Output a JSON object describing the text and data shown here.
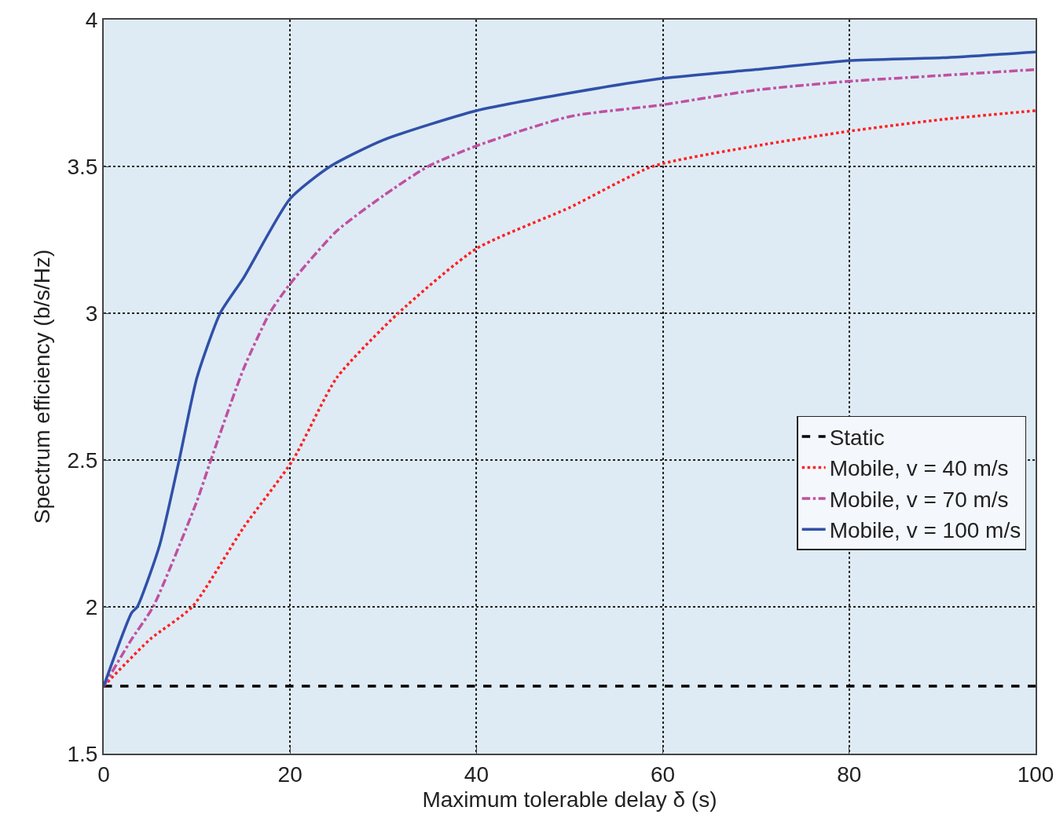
{
  "chart_data": {
    "type": "line",
    "xlabel": "Maximum tolerable delay δ (s)",
    "ylabel": "Spectrum efficiency (b/s/Hz)",
    "xlim": [
      0,
      100
    ],
    "ylim": [
      1.5,
      4
    ],
    "xticks": [
      0,
      20,
      40,
      60,
      80,
      100
    ],
    "yticks": [
      1.5,
      2,
      2.5,
      3,
      3.5,
      4
    ],
    "grid": true,
    "legend": "right",
    "marker": "none",
    "series": [
      {
        "name": "Static",
        "color": "#000000",
        "line_style": "dashed",
        "x": [
          0,
          100
        ],
        "values": [
          1.73,
          1.73
        ]
      },
      {
        "name": "Mobile, v = 40 m/s",
        "color": "#ff2020",
        "line_style": "dotted",
        "x": [
          0,
          5,
          9.5,
          15,
          20.3,
          25,
          31.6,
          40,
          50,
          58.9,
          70,
          80,
          90,
          100
        ],
        "values": [
          1.73,
          1.89,
          2.0,
          2.27,
          2.5,
          2.78,
          3.0,
          3.22,
          3.36,
          3.5,
          3.57,
          3.62,
          3.66,
          3.69
        ]
      },
      {
        "name": "Mobile, v = 70 m/s",
        "color": "#c050a0",
        "line_style": "dashdot",
        "x": [
          0,
          3,
          5.3,
          10,
          11.5,
          15,
          17.8,
          20,
          25,
          30,
          34.8,
          40,
          50,
          60,
          70,
          80,
          90,
          100
        ],
        "values": [
          1.73,
          1.89,
          2.0,
          2.36,
          2.5,
          2.81,
          3.0,
          3.1,
          3.28,
          3.4,
          3.5,
          3.57,
          3.67,
          3.71,
          3.76,
          3.79,
          3.81,
          3.83
        ]
      },
      {
        "name": "Mobile, v = 100 m/s",
        "color": "#3050a8",
        "line_style": "solid",
        "x": [
          0,
          3,
          3.6,
          6,
          8.1,
          10,
          12.5,
          15,
          20,
          24.3,
          30,
          40,
          50,
          60,
          70,
          80,
          90,
          100
        ],
        "values": [
          1.73,
          1.98,
          2.0,
          2.21,
          2.5,
          2.78,
          3.0,
          3.12,
          3.39,
          3.5,
          3.59,
          3.69,
          3.75,
          3.8,
          3.83,
          3.86,
          3.87,
          3.89
        ]
      }
    ]
  }
}
